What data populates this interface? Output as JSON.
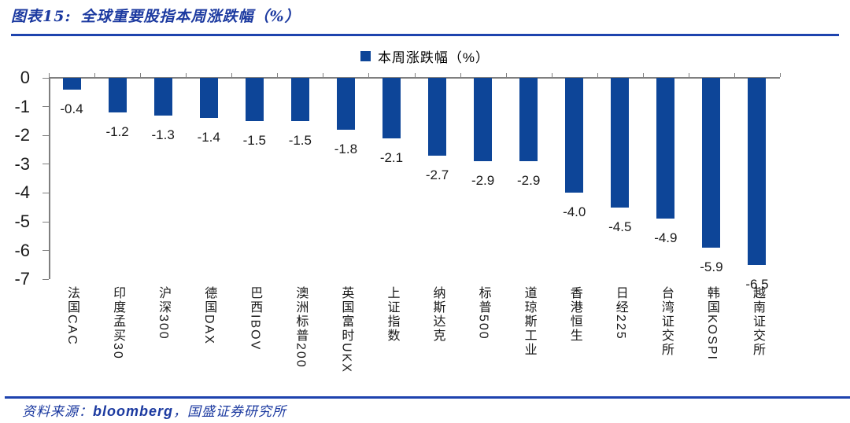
{
  "header": {
    "figure_label": "图表15:",
    "title": "全球重要股指本周涨跌幅（%）"
  },
  "legend": {
    "label": "本周涨跌幅（%）",
    "swatch_color": "#0D4598"
  },
  "chart_data": {
    "type": "bar",
    "title": "全球重要股指本周涨跌幅（%）",
    "legend_entries": [
      "本周涨跌幅（%）"
    ],
    "legend_position": "top-center",
    "categories": [
      "法国CAC",
      "印度孟买30",
      "沪深300",
      "德国DAX",
      "巴西IBOV",
      "澳洲标普200",
      "英国富时UKX",
      "上证指数",
      "纳斯达克",
      "标普500",
      "道琼斯工业",
      "香港恒生",
      "日经225",
      "台湾证交所",
      "韩国KOSPI",
      "越南证交所"
    ],
    "values": [
      -0.4,
      -1.2,
      -1.3,
      -1.4,
      -1.5,
      -1.5,
      -1.8,
      -2.1,
      -2.7,
      -2.9,
      -2.9,
      -4.0,
      -4.5,
      -4.9,
      -5.9,
      -6.5
    ],
    "value_labels": [
      "-0.4",
      "-1.2",
      "-1.3",
      "-1.4",
      "-1.5",
      "-1.5",
      "-1.8",
      "-2.1",
      "-2.7",
      "-2.9",
      "-2.9",
      "-4.0",
      "-4.5",
      "-4.9",
      "-5.9",
      "-6.5"
    ],
    "xlabel": "",
    "ylabel": "",
    "ylim": [
      -7,
      0
    ],
    "y_tick_labels": [
      "0",
      "-1",
      "-2",
      "-3",
      "-4",
      "-5",
      "-6",
      "-7"
    ],
    "grid": false,
    "bar_color": "#0D4598",
    "axis_color": "#7F7F7F",
    "value_label_position": "below-bar-end"
  },
  "footer": {
    "source_label": "资料来源：",
    "source_name": "bloomberg",
    "source_rest": "，国盛证券研究所"
  }
}
